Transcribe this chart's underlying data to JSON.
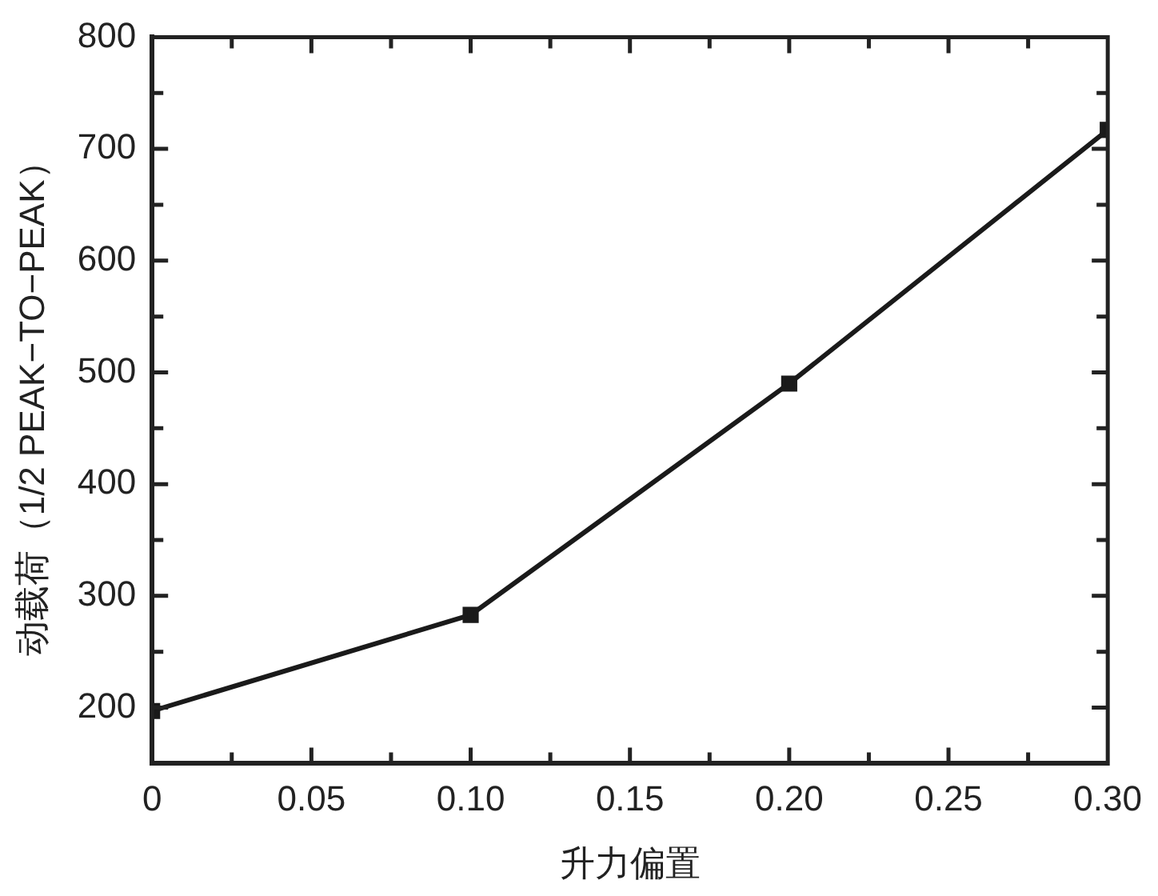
{
  "chart_data": {
    "type": "line",
    "xlabel": "升力偏置",
    "ylabel": "动载荷（1/2 PEAK−TO−PEAK）",
    "x": [
      0,
      0.1,
      0.2,
      0.3
    ],
    "series": [
      {
        "color": "#1a1a1a",
        "values": [
          197,
          283,
          490,
          717
        ]
      }
    ],
    "xlim": [
      0,
      0.3
    ],
    "xticks": [
      0,
      {
        "value": 0.025,
        "label": null
      },
      {
        "value": 0.05,
        "label": "0.05"
      },
      {
        "value": 0.075,
        "label": null
      },
      {
        "value": 0.1,
        "label": "0.10"
      },
      {
        "value": 0.125,
        "label": null
      },
      {
        "value": 0.15,
        "label": "0.15"
      },
      {
        "value": 0.175,
        "label": null
      },
      {
        "value": 0.2,
        "label": "0.20"
      },
      {
        "value": 0.225,
        "label": null
      },
      {
        "value": 0.25,
        "label": "0.25"
      },
      {
        "value": 0.275,
        "label": null
      },
      {
        "value": 0.3,
        "label": "0.30"
      }
    ],
    "ylim": [
      150,
      800
    ],
    "yticks": [
      {
        "value": 150,
        "label": null
      },
      200,
      {
        "value": 250,
        "label": null
      },
      300,
      {
        "value": 350,
        "label": null
      },
      400,
      {
        "value": 450,
        "label": null
      },
      500,
      {
        "value": 550,
        "label": null
      },
      600,
      {
        "value": 650,
        "label": null
      },
      700,
      {
        "value": 750,
        "label": null
      },
      800
    ],
    "marker": "square",
    "line_style": "solid",
    "grid": false,
    "legend": false
  }
}
